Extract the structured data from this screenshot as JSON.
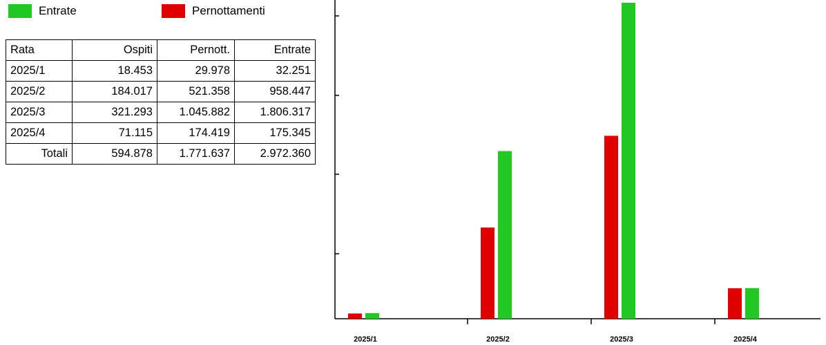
{
  "legend": {
    "items": [
      {
        "label": "Entrate",
        "color": "#22c922"
      },
      {
        "label": "Pernottamenti",
        "color": "#e00000"
      }
    ]
  },
  "table": {
    "headers": [
      "Rata",
      "Ospiti",
      "Pernott.",
      "Entrate"
    ],
    "rows": [
      [
        "2025/1",
        "18.453",
        "29.978",
        "32.251"
      ],
      [
        "2025/2",
        "184.017",
        "521.358",
        "958.447"
      ],
      [
        "2025/3",
        "321.293",
        "1.045.882",
        "1.806.317"
      ],
      [
        "2025/4",
        "71.115",
        "174.419",
        "175.345"
      ]
    ],
    "totals": [
      "Totali",
      "594.878",
      "1.771.637",
      "2.972.360"
    ]
  },
  "chart_data": {
    "type": "bar",
    "categories": [
      "2025/1",
      "2025/2",
      "2025/3",
      "2025/4"
    ],
    "series": [
      {
        "name": "Pernottamenti",
        "color": "#e00000",
        "values": [
          29978,
          521358,
          1045882,
          174419
        ]
      },
      {
        "name": "Entrate",
        "color": "#22c922",
        "values": [
          32251,
          958447,
          1806317,
          175345
        ]
      }
    ],
    "y_ticks_labeled": false,
    "grid": false
  }
}
